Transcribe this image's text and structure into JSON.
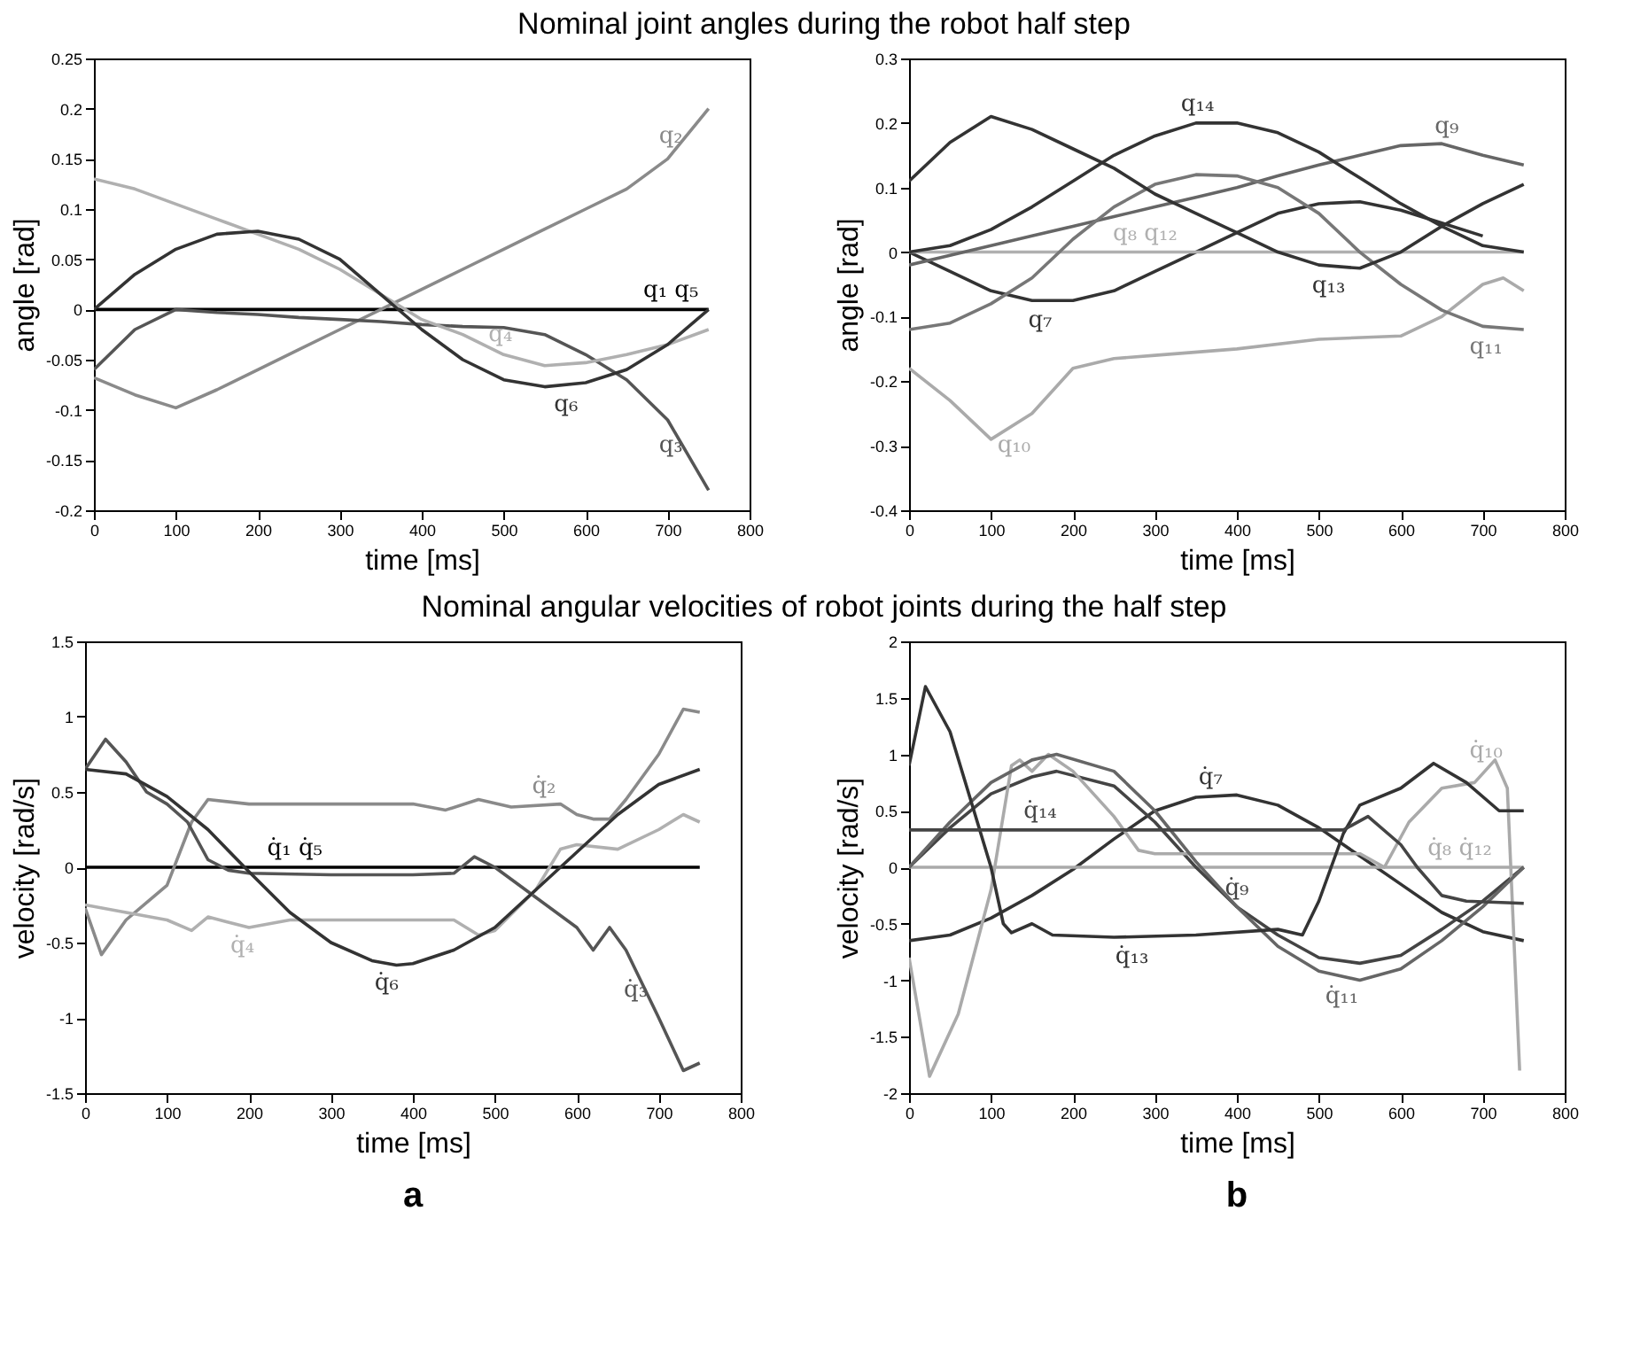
{
  "chart_data": [
    {
      "type": "line",
      "title": "Nominal joint angles during the robot half step",
      "xlabel": "time [ms]",
      "ylabel": "angle [rad]",
      "xlim": [
        0,
        800
      ],
      "xticks": [
        0,
        100,
        200,
        300,
        400,
        500,
        600,
        700,
        800
      ],
      "ylim": [
        -0.2,
        0.25
      ],
      "yticks": [
        -0.2,
        -0.15,
        -0.1,
        -0.05,
        0,
        0.05,
        0.1,
        0.15,
        0.2,
        0.25
      ],
      "series": [
        {
          "name": "q₁ q₅",
          "color": "#000000",
          "x": [
            0,
            750
          ],
          "values": [
            0,
            0
          ]
        },
        {
          "name": "q₂",
          "color": "#8a8a8a",
          "x": [
            0,
            50,
            100,
            150,
            200,
            250,
            300,
            350,
            400,
            450,
            500,
            550,
            600,
            650,
            700,
            750
          ],
          "values": [
            -0.068,
            -0.085,
            -0.098,
            -0.08,
            -0.06,
            -0.04,
            -0.02,
            0,
            0.02,
            0.04,
            0.06,
            0.08,
            0.1,
            0.12,
            0.15,
            0.2
          ]
        },
        {
          "name": "q₃",
          "color": "#555555",
          "x": [
            0,
            50,
            100,
            150,
            200,
            250,
            300,
            350,
            400,
            450,
            500,
            550,
            600,
            650,
            700,
            750
          ],
          "values": [
            -0.06,
            -0.02,
            0,
            -0.003,
            -0.005,
            -0.008,
            -0.01,
            -0.012,
            -0.015,
            -0.017,
            -0.018,
            -0.025,
            -0.045,
            -0.07,
            -0.11,
            -0.18
          ]
        },
        {
          "name": "q₄",
          "color": "#b0b0b0",
          "x": [
            0,
            50,
            100,
            150,
            200,
            250,
            300,
            350,
            400,
            450,
            500,
            550,
            600,
            650,
            700,
            750
          ],
          "values": [
            0.13,
            0.12,
            0.105,
            0.09,
            0.075,
            0.06,
            0.04,
            0.015,
            -0.01,
            -0.025,
            -0.045,
            -0.056,
            -0.053,
            -0.045,
            -0.035,
            -0.02
          ]
        },
        {
          "name": "q₆",
          "color": "#333333",
          "x": [
            0,
            50,
            100,
            150,
            200,
            250,
            300,
            350,
            400,
            450,
            500,
            550,
            600,
            650,
            700,
            750
          ],
          "values": [
            0,
            0.035,
            0.06,
            0.075,
            0.078,
            0.07,
            0.05,
            0.015,
            -0.02,
            -0.05,
            -0.07,
            -0.077,
            -0.073,
            -0.06,
            -0.035,
            0
          ]
        }
      ]
    },
    {
      "type": "line",
      "xlabel": "time [ms]",
      "ylabel": "angle [rad]",
      "xlim": [
        0,
        800
      ],
      "xticks": [
        0,
        100,
        200,
        300,
        400,
        500,
        600,
        700,
        800
      ],
      "ylim": [
        -0.4,
        0.3
      ],
      "yticks": [
        -0.4,
        -0.3,
        -0.2,
        -0.1,
        0,
        0.1,
        0.2,
        0.3
      ],
      "series": [
        {
          "name": "q₇",
          "color": "#333333",
          "x": [
            0,
            50,
            100,
            150,
            200,
            250,
            300,
            350,
            400,
            450,
            500,
            550,
            600,
            650,
            700
          ],
          "values": [
            0,
            -0.03,
            -0.06,
            -0.075,
            -0.075,
            -0.06,
            -0.03,
            0,
            0.03,
            0.06,
            0.075,
            0.078,
            0.065,
            0.045,
            0.025
          ]
        },
        {
          "name": "q₈ q₁₂",
          "color": "#b0b0b0",
          "x": [
            0,
            750
          ],
          "values": [
            0,
            0
          ]
        },
        {
          "name": "q₉",
          "color": "#666666",
          "x": [
            0,
            50,
            100,
            150,
            200,
            250,
            300,
            350,
            400,
            450,
            500,
            550,
            600,
            650,
            700,
            750
          ],
          "values": [
            -0.02,
            -0.005,
            0.01,
            0.025,
            0.04,
            0.055,
            0.07,
            0.085,
            0.1,
            0.118,
            0.135,
            0.15,
            0.165,
            0.168,
            0.15,
            0.135
          ]
        },
        {
          "name": "q₁₀",
          "color": "#aaaaaa",
          "x": [
            0,
            50,
            100,
            150,
            200,
            250,
            300,
            400,
            500,
            600,
            650,
            700,
            725,
            750
          ],
          "values": [
            -0.18,
            -0.23,
            -0.29,
            -0.25,
            -0.18,
            -0.165,
            -0.16,
            -0.15,
            -0.135,
            -0.13,
            -0.1,
            -0.05,
            -0.04,
            -0.06
          ]
        },
        {
          "name": "q₁₁",
          "color": "#777777",
          "x": [
            0,
            50,
            100,
            150,
            200,
            250,
            300,
            350,
            400,
            450,
            500,
            550,
            600,
            650,
            700,
            750
          ],
          "values": [
            -0.12,
            -0.11,
            -0.08,
            -0.04,
            0.02,
            0.07,
            0.105,
            0.12,
            0.118,
            0.1,
            0.06,
            0,
            -0.05,
            -0.09,
            -0.115,
            -0.12
          ]
        },
        {
          "name": "q₁₃",
          "color": "#333333",
          "x": [
            0,
            50,
            100,
            150,
            200,
            250,
            300,
            350,
            400,
            450,
            500,
            550,
            600,
            650,
            700,
            750
          ],
          "values": [
            0.11,
            0.17,
            0.21,
            0.19,
            0.16,
            0.13,
            0.09,
            0.06,
            0.03,
            0,
            -0.02,
            -0.025,
            0,
            0.04,
            0.075,
            0.105
          ]
        },
        {
          "name": "q₁₄",
          "color": "#333333",
          "x": [
            0,
            50,
            100,
            150,
            200,
            250,
            300,
            350,
            400,
            450,
            500,
            550,
            600,
            650,
            700,
            750
          ],
          "values": [
            0,
            0.01,
            0.035,
            0.07,
            0.11,
            0.15,
            0.18,
            0.2,
            0.2,
            0.185,
            0.155,
            0.115,
            0.075,
            0.04,
            0.01,
            0
          ]
        }
      ]
    },
    {
      "type": "line",
      "title": "Nominal angular velocities of robot joints during the half step",
      "annotations": [
        "a"
      ],
      "xlabel": "time [ms]",
      "ylabel": "velocity [rad/s]",
      "xlim": [
        0,
        800
      ],
      "xticks": [
        0,
        100,
        200,
        300,
        400,
        500,
        600,
        700,
        800
      ],
      "ylim": [
        -1.5,
        1.5
      ],
      "yticks": [
        -1.5,
        -1,
        -0.5,
        0,
        0.5,
        1,
        1.5
      ],
      "series": [
        {
          "name": "q̇₁ q̇₅",
          "color": "#000000",
          "x": [
            0,
            750
          ],
          "values": [
            0,
            0
          ]
        },
        {
          "name": "q̇₂",
          "color": "#8a8a8a",
          "x": [
            0,
            20,
            50,
            100,
            130,
            150,
            200,
            300,
            400,
            440,
            480,
            520,
            580,
            600,
            620,
            640,
            660,
            700,
            730,
            750
          ],
          "values": [
            -0.27,
            -0.58,
            -0.35,
            -0.12,
            0.3,
            0.45,
            0.42,
            0.42,
            0.42,
            0.38,
            0.45,
            0.4,
            0.42,
            0.35,
            0.32,
            0.32,
            0.45,
            0.75,
            1.05,
            1.03
          ]
        },
        {
          "name": "q̇₃",
          "color": "#555555",
          "x": [
            0,
            25,
            50,
            75,
            100,
            125,
            150,
            175,
            200,
            300,
            400,
            450,
            475,
            500,
            550,
            600,
            620,
            640,
            660,
            700,
            730,
            750
          ],
          "values": [
            0.65,
            0.85,
            0.7,
            0.5,
            0.42,
            0.3,
            0.05,
            -0.02,
            -0.04,
            -0.05,
            -0.05,
            -0.04,
            0.07,
            0,
            -0.2,
            -0.4,
            -0.55,
            -0.4,
            -0.55,
            -1,
            -1.35,
            -1.3
          ]
        },
        {
          "name": "q̇₄",
          "color": "#b0b0b0",
          "x": [
            0,
            50,
            100,
            130,
            150,
            200,
            250,
            450,
            480,
            500,
            550,
            580,
            600,
            650,
            700,
            730,
            750
          ],
          "values": [
            -0.25,
            -0.3,
            -0.35,
            -0.42,
            -0.33,
            -0.4,
            -0.35,
            -0.35,
            -0.45,
            -0.42,
            -0.15,
            0.12,
            0.15,
            0.12,
            0.25,
            0.35,
            0.3
          ]
        },
        {
          "name": "q̇₆",
          "color": "#333333",
          "x": [
            0,
            50,
            100,
            150,
            200,
            250,
            300,
            350,
            380,
            400,
            450,
            500,
            550,
            600,
            650,
            700,
            750
          ],
          "values": [
            0.65,
            0.62,
            0.47,
            0.25,
            -0.03,
            -0.3,
            -0.5,
            -0.62,
            -0.65,
            -0.64,
            -0.55,
            -0.4,
            -0.15,
            0.1,
            0.35,
            0.55,
            0.65
          ]
        }
      ]
    },
    {
      "type": "line",
      "annotations": [
        "b"
      ],
      "xlabel": "time [ms]",
      "ylabel": "velocity [rad/s]",
      "xlim": [
        0,
        800
      ],
      "xticks": [
        0,
        100,
        200,
        300,
        400,
        500,
        600,
        700,
        800
      ],
      "ylim": [
        -2,
        2
      ],
      "yticks": [
        -2,
        -1.5,
        -1,
        -0.5,
        0,
        0.5,
        1,
        1.5,
        2
      ],
      "series": [
        {
          "name": "q̇₇",
          "color": "#333333",
          "x": [
            0,
            50,
            100,
            150,
            200,
            250,
            300,
            350,
            400,
            450,
            500,
            550,
            600,
            650,
            700,
            750
          ],
          "values": [
            -0.65,
            -0.6,
            -0.45,
            -0.25,
            -0.02,
            0.25,
            0.5,
            0.62,
            0.64,
            0.55,
            0.35,
            0.1,
            -0.15,
            -0.4,
            -0.57,
            -0.65
          ]
        },
        {
          "name": "q̇₈ q̇₁₂",
          "color": "#aaaaaa",
          "x": [
            0,
            750
          ],
          "values": [
            0,
            0
          ]
        },
        {
          "name": "q̇₉",
          "color": "#444444",
          "x": [
            0,
            50,
            100,
            150,
            180,
            250,
            300,
            350,
            400,
            450,
            500,
            550,
            600,
            650,
            700,
            750
          ],
          "values": [
            0,
            0.35,
            0.65,
            0.8,
            0.85,
            0.72,
            0.4,
            0,
            -0.35,
            -0.6,
            -0.8,
            -0.85,
            -0.78,
            -0.55,
            -0.3,
            0
          ]
        },
        {
          "name": "q̇₁₀",
          "color": "#aaaaaa",
          "x": [
            0,
            25,
            60,
            100,
            125,
            135,
            150,
            170,
            200,
            250,
            280,
            300,
            400,
            550,
            580,
            610,
            650,
            690,
            715,
            730,
            745
          ],
          "values": [
            -0.8,
            -1.85,
            -1.3,
            -0.2,
            0.9,
            0.95,
            0.85,
            1,
            0.85,
            0.45,
            0.15,
            0.12,
            0.12,
            0.12,
            0,
            0.4,
            0.7,
            0.75,
            0.95,
            0.7,
            -1.8
          ]
        },
        {
          "name": "q̇₁₁",
          "color": "#666666",
          "x": [
            0,
            50,
            100,
            150,
            180,
            250,
            300,
            350,
            400,
            450,
            500,
            550,
            600,
            650,
            700,
            750
          ],
          "values": [
            0,
            0.4,
            0.75,
            0.95,
            1,
            0.85,
            0.5,
            0.05,
            -0.35,
            -0.7,
            -0.92,
            -1,
            -0.9,
            -0.65,
            -0.35,
            0
          ]
        },
        {
          "name": "q̇₁₃",
          "color": "#333333",
          "x": [
            0,
            20,
            50,
            75,
            100,
            115,
            125,
            150,
            175,
            250,
            350,
            450,
            480,
            500,
            530,
            550,
            600,
            640,
            680,
            720,
            750
          ],
          "values": [
            0.9,
            1.6,
            1.2,
            0.6,
            0,
            -0.5,
            -0.58,
            -0.5,
            -0.6,
            -0.62,
            -0.6,
            -0.55,
            -0.6,
            -0.3,
            0.3,
            0.55,
            0.7,
            0.92,
            0.75,
            0.5,
            0.5
          ]
        },
        {
          "name": "q̇₁₄",
          "color": "#444444",
          "x": [
            0,
            530,
            560,
            600,
            620,
            650,
            680,
            750
          ],
          "values": [
            0.33,
            0.33,
            0.45,
            0.2,
            0,
            -0.25,
            -0.3,
            -0.32
          ]
        }
      ]
    }
  ]
}
